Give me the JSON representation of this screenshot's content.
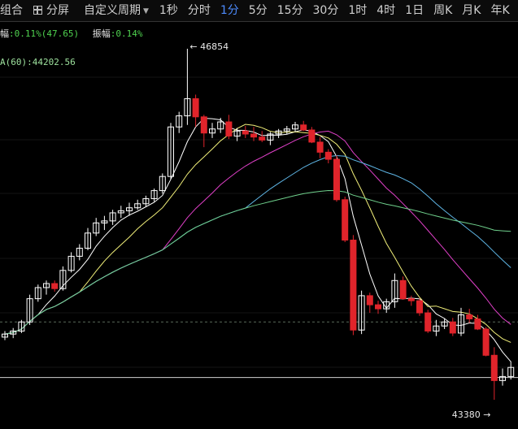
{
  "toolbar": {
    "combo_label": "组合",
    "split_label": "分屏",
    "custom_period_label": "自定义周期",
    "periods": [
      "1秒",
      "分时",
      "1分",
      "5分",
      "15分",
      "30分",
      "1时",
      "4时",
      "1日",
      "周K",
      "月K",
      "年K"
    ],
    "active_period": "1分"
  },
  "info_line1": {
    "label_prefix": "幅",
    "change_text": ":0.11%(47.65)",
    "amplitude_label": "振幅",
    "amplitude_value": ":0.14%"
  },
  "info_line2": {
    "ma_label": "A(60)",
    "ma_value": ":44202.56"
  },
  "annotations": {
    "high_label": "46854",
    "low_label": "43380"
  },
  "colors": {
    "up": "#ffffff",
    "down": "#e0242b",
    "ma5": "#ffffff",
    "ma10": "#f2f07a",
    "ma20": "#e040c8",
    "ma30": "#5fb6e6",
    "ma60": "#6fd08c",
    "active": "#4d8cff"
  },
  "chart_data": {
    "type": "candlestick",
    "ohlc": [
      [
        44000,
        44060,
        43970,
        44030
      ],
      [
        44030,
        44090,
        43990,
        44060
      ],
      [
        44060,
        44170,
        44040,
        44150
      ],
      [
        44150,
        44420,
        44120,
        44380
      ],
      [
        44380,
        44520,
        44350,
        44490
      ],
      [
        44490,
        44560,
        44420,
        44530
      ],
      [
        44530,
        44560,
        44450,
        44480
      ],
      [
        44480,
        44700,
        44460,
        44660
      ],
      [
        44660,
        44840,
        44640,
        44800
      ],
      [
        44800,
        44920,
        44760,
        44880
      ],
      [
        44880,
        45080,
        44860,
        45030
      ],
      [
        45030,
        45180,
        45000,
        45130
      ],
      [
        45130,
        45200,
        45060,
        45150
      ],
      [
        45150,
        45260,
        45110,
        45230
      ],
      [
        45230,
        45300,
        45180,
        45250
      ],
      [
        45250,
        45330,
        45200,
        45280
      ],
      [
        45280,
        45360,
        45260,
        45320
      ],
      [
        45320,
        45400,
        45290,
        45370
      ],
      [
        45370,
        45470,
        45340,
        45450
      ],
      [
        45450,
        45620,
        45420,
        45590
      ],
      [
        45590,
        46120,
        45560,
        46080
      ],
      [
        46080,
        46230,
        46020,
        46190
      ],
      [
        46190,
        46854,
        46100,
        46360
      ],
      [
        46360,
        46400,
        46080,
        46180
      ],
      [
        46180,
        46200,
        45880,
        46020
      ],
      [
        46020,
        46120,
        45970,
        46060
      ],
      [
        46060,
        46170,
        46020,
        46130
      ],
      [
        46130,
        46200,
        45960,
        45990
      ],
      [
        45990,
        46070,
        45940,
        46040
      ],
      [
        46040,
        46090,
        45970,
        46010
      ],
      [
        46010,
        46080,
        45940,
        45980
      ],
      [
        45980,
        46040,
        45930,
        45950
      ],
      [
        45950,
        46030,
        45900,
        46010
      ],
      [
        46010,
        46060,
        45970,
        46040
      ],
      [
        46040,
        46090,
        46010,
        46060
      ],
      [
        46060,
        46130,
        46030,
        46100
      ],
      [
        46100,
        46140,
        46040,
        46050
      ],
      [
        46050,
        46080,
        45920,
        45930
      ],
      [
        45930,
        45980,
        45770,
        45830
      ],
      [
        45830,
        45860,
        45720,
        45760
      ],
      [
        45760,
        45800,
        45340,
        45360
      ],
      [
        45360,
        45390,
        44940,
        44960
      ],
      [
        44960,
        45010,
        44020,
        44070
      ],
      [
        44070,
        44460,
        44030,
        44410
      ],
      [
        44410,
        44440,
        44240,
        44320
      ],
      [
        44320,
        44360,
        44230,
        44280
      ],
      [
        44280,
        44380,
        44240,
        44350
      ],
      [
        44350,
        44630,
        44290,
        44560
      ],
      [
        44560,
        44600,
        44370,
        44380
      ],
      [
        44380,
        44410,
        44310,
        44360
      ],
      [
        44360,
        44380,
        44210,
        44240
      ],
      [
        44240,
        44270,
        44040,
        44060
      ],
      [
        44060,
        44170,
        44010,
        44110
      ],
      [
        44110,
        44180,
        44080,
        44150
      ],
      [
        44150,
        44190,
        44010,
        44040
      ],
      [
        44040,
        44290,
        44010,
        44220
      ],
      [
        44220,
        44280,
        44140,
        44180
      ],
      [
        44180,
        44220,
        44070,
        44080
      ],
      [
        44080,
        44100,
        43810,
        43820
      ],
      [
        43820,
        43900,
        43380,
        43570
      ],
      [
        43570,
        43690,
        43520,
        43610
      ],
      [
        43610,
        43760,
        43580,
        43700
      ]
    ],
    "high_marker_value": 46854,
    "low_marker_value": 43380,
    "ma60_last": 44202.56,
    "dashed_line_value": 44150,
    "solid_line_value": 43600
  }
}
